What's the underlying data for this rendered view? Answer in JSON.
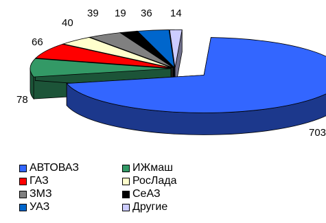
{
  "chart_data": {
    "type": "pie",
    "title": "",
    "three_d": true,
    "exploded_slice": "АВТОВАЗ",
    "legend_placement": "bottom-left",
    "slices": [
      {
        "label": "АВТОВАЗ",
        "value": 703,
        "value_label": "703",
        "color": "#3366ff"
      },
      {
        "label": "ИЖмаш",
        "value": 78,
        "value_label": "78",
        "color": "#339966"
      },
      {
        "label": "ГАЗ",
        "value": 66,
        "value_label": "66",
        "color": "#ff0000"
      },
      {
        "label": "РосЛада",
        "value": 40,
        "value_label": "40",
        "color": "#ffffcc"
      },
      {
        "label": "ЗМЗ",
        "value": 39,
        "value_label": "39",
        "color": "#808080"
      },
      {
        "label": "СеАЗ",
        "value": 19,
        "value_label": "19",
        "color": "#000000"
      },
      {
        "label": "УАЗ",
        "value": 36,
        "value_label": "36",
        "color": "#0066cc"
      },
      {
        "label": "Другие",
        "value": 14,
        "value_label": "14",
        "color": "#ccccff"
      }
    ]
  }
}
